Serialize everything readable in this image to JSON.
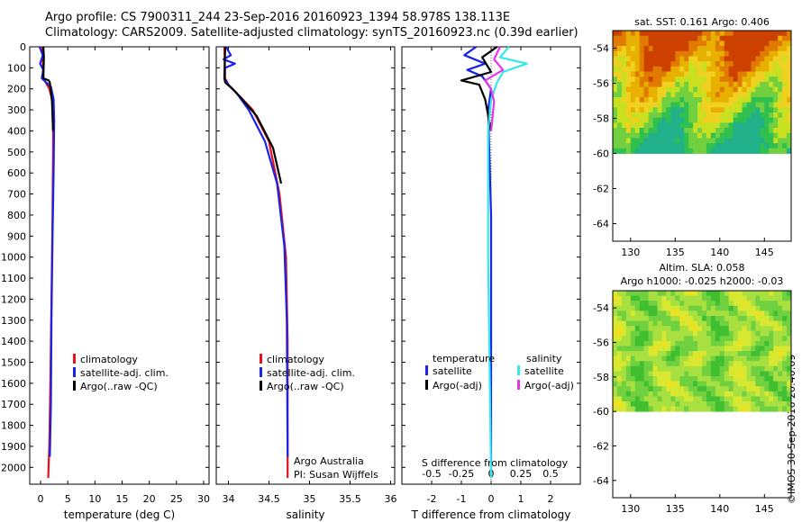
{
  "header": {
    "line1": "Argo profile: CS 7900311_244 23-Sep-2016 20160923_1394 58.978S 138.113E",
    "line2": "Climatology: CARS2009. Satellite-adjusted climatology: synTS_20160923.nc (0.39d earlier)"
  },
  "stamp": "©IMOS 30-Sep-2016 20:40:09",
  "colors": {
    "red": "#e8101a",
    "blue": "#1a22e8",
    "black": "#000000",
    "cyan": "#33e8e8",
    "magenta": "#e833e8"
  },
  "chart_data": [
    {
      "id": "temperature",
      "type": "line",
      "xlabel": "temperature (deg C)",
      "xlim": [
        -2,
        31
      ],
      "ylim": [
        2080,
        0
      ],
      "xticks": [
        0,
        5,
        10,
        15,
        20,
        25,
        30
      ],
      "yticks": [
        0,
        100,
        200,
        300,
        400,
        500,
        600,
        700,
        800,
        900,
        1000,
        1100,
        1200,
        1300,
        1400,
        1500,
        1600,
        1700,
        1800,
        1900,
        2000
      ],
      "legend": [
        {
          "label": "climatology",
          "color": "#e8101a"
        },
        {
          "label": "satellite-adj. clim.",
          "color": "#1a22e8"
        },
        {
          "label": "Argo(..raw -QC)",
          "color": "#000000"
        }
      ],
      "series": [
        {
          "color": "#e8101a",
          "x": [
            0.3,
            0.4,
            0.5,
            1.6,
            2.1,
            2.3,
            2.3,
            2.2,
            2.0,
            1.8,
            1.6,
            1.4
          ],
          "y": [
            0,
            50,
            150,
            200,
            250,
            300,
            500,
            800,
            1200,
            1600,
            1900,
            2050
          ]
        },
        {
          "color": "#1a22e8",
          "x": [
            -0.2,
            0.4,
            -0.1,
            0.5,
            0.2,
            1.9,
            2.4,
            2.5,
            2.4,
            2.2,
            2.0,
            1.9,
            1.7
          ],
          "y": [
            0,
            40,
            80,
            110,
            150,
            190,
            250,
            350,
            600,
            900,
            1300,
            1700,
            1950
          ]
        },
        {
          "color": "#000000",
          "x": [
            0.5,
            0.6,
            0.5,
            1.5,
            1.7,
            1.8,
            2.1,
            2.3
          ],
          "y": [
            0,
            50,
            150,
            160,
            170,
            190,
            260,
            400
          ]
        }
      ]
    },
    {
      "id": "salinity",
      "type": "line",
      "xlabel": "salinity",
      "xlim": [
        33.85,
        36.05
      ],
      "ylim": [
        2080,
        0
      ],
      "xticks": [
        34,
        34.5,
        35,
        35.5,
        36
      ],
      "xticklabels": [
        "34",
        "34.5",
        "35",
        "35.5",
        "36"
      ],
      "legend": [
        {
          "label": "climatology",
          "color": "#e8101a"
        },
        {
          "label": "satellite-adj. clim.",
          "color": "#1a22e8"
        },
        {
          "label": "Argo(..raw -QC)",
          "color": "#000000"
        }
      ],
      "annotations": [
        "Argo Australia",
        "PI: Susan Wijffels"
      ],
      "series": [
        {
          "color": "#e8101a",
          "x": [
            33.95,
            33.96,
            34.0,
            34.1,
            34.3,
            34.5,
            34.63,
            34.71,
            34.73,
            34.73
          ],
          "y": [
            0,
            150,
            180,
            220,
            300,
            450,
            700,
            1000,
            1400,
            2050
          ]
        },
        {
          "color": "#1a22e8",
          "x": [
            33.97,
            34.03,
            33.94,
            34.08,
            33.96,
            33.95,
            34.0,
            34.1,
            34.25,
            34.45,
            34.6,
            34.69,
            34.72,
            34.73
          ],
          "y": [
            0,
            40,
            60,
            80,
            100,
            150,
            180,
            220,
            300,
            450,
            650,
            950,
            1300,
            1950
          ]
        },
        {
          "color": "#000000",
          "x": [
            33.96,
            33.95,
            33.96,
            34.05,
            34.15,
            34.35,
            34.55,
            34.65
          ],
          "y": [
            0,
            150,
            170,
            200,
            240,
            330,
            480,
            650
          ]
        }
      ]
    },
    {
      "id": "difference",
      "type": "line",
      "xlabel": "T difference from climatology",
      "xlabel2": "S difference from climatology",
      "xlim": [
        -3,
        3
      ],
      "ylim": [
        2080,
        0
      ],
      "xticks": [
        -2,
        -1,
        0,
        1,
        2
      ],
      "xticks2": [
        -0.5,
        -0.25,
        0,
        0.25,
        0.5
      ],
      "legend_titles": [
        "temperature",
        "salinity"
      ],
      "legend": [
        {
          "label": "satellite",
          "color": "#1a22e8"
        },
        {
          "label": "Argo(-adj)",
          "color": "#000000"
        },
        {
          "label": "satellite",
          "color": "#33e8e8"
        },
        {
          "label": "Argo(-adj)",
          "color": "#e833e8"
        }
      ],
      "series": [
        {
          "name": "temperature satellite",
          "color": "#1a22e8",
          "x": [
            -0.5,
            -0.9,
            -0.2,
            -0.8,
            -0.3,
            0.0,
            -0.1,
            0.0,
            0.0
          ],
          "y": [
            0,
            40,
            80,
            110,
            140,
            200,
            300,
            800,
            2050
          ]
        },
        {
          "name": "temperature Argo(-adj)",
          "color": "#000000",
          "x": [
            0.2,
            -0.3,
            0.0,
            -1.0,
            -0.4,
            -0.2,
            0.0
          ],
          "y": [
            0,
            50,
            120,
            160,
            180,
            250,
            400
          ]
        },
        {
          "name": "salinity satellite",
          "color": "#33e8e8",
          "x": [
            0.6,
            0.3,
            1.2,
            0.4,
            0.2,
            0.0,
            -0.1,
            -0.1,
            0.0
          ],
          "y": [
            0,
            50,
            80,
            120,
            170,
            250,
            400,
            1000,
            2050
          ]
        },
        {
          "name": "salinity Argo(-adj)",
          "color": "#e833e8",
          "x": [
            0.3,
            0.1,
            0.4,
            -0.2,
            0.0,
            0.1,
            0.0
          ],
          "y": [
            0,
            60,
            110,
            160,
            200,
            260,
            400
          ]
        }
      ]
    },
    {
      "id": "sst-map",
      "type": "heatmap",
      "title": "sat. SST: 0.161  Argo: 0.406",
      "xlim": [
        128,
        148
      ],
      "ylim": [
        -65,
        -53
      ],
      "xticks": [
        130,
        135,
        140,
        145
      ],
      "yticks": [
        -54,
        -56,
        -58,
        -60,
        -62,
        -64
      ],
      "data_extent_lat": [
        -60,
        -53
      ],
      "palette": [
        "#cc4000",
        "#e07a00",
        "#e8b000",
        "#f0d020",
        "#c8e020",
        "#70d040",
        "#30c050",
        "#20b08a"
      ],
      "bands": [
        0,
        1,
        2,
        3,
        4,
        5,
        5,
        6
      ]
    },
    {
      "id": "sla-map",
      "type": "heatmap",
      "title": "Altim. SLA: 0.058",
      "subtitle": "Argo h1000: -0.025  h2000: -0.03",
      "xlim": [
        128,
        148
      ],
      "ylim": [
        -65,
        -53
      ],
      "xticks": [
        130,
        135,
        140,
        145
      ],
      "yticks": [
        -54,
        -56,
        -58,
        -60,
        -62,
        -64
      ],
      "data_extent_lat": [
        -60,
        -53
      ],
      "palette": [
        "#40c030",
        "#70d040",
        "#a8e040",
        "#d8e830",
        "#f0e020"
      ]
    }
  ]
}
